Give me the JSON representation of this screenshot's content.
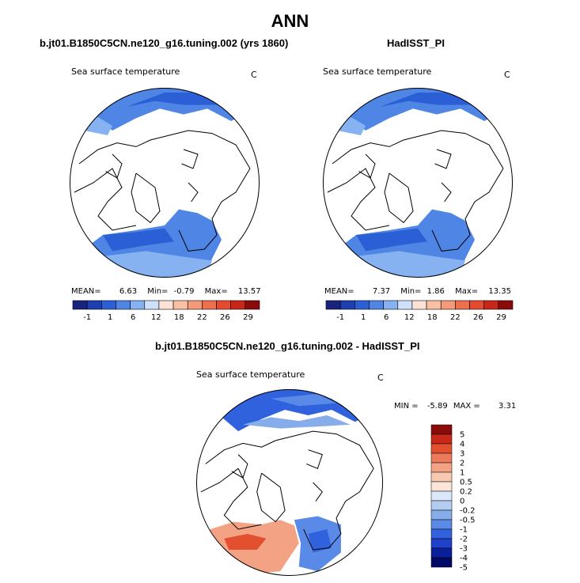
{
  "chart_data": [
    {
      "type": "heatmap",
      "projection": "polar-stereographic",
      "title": "b.jt01.B1850C5CN.ne120_g16.tuning.002 (yrs 1860)",
      "field": "Sea surface temperature",
      "units": "C",
      "stats": {
        "mean_label": "MEAN=",
        "mean": "6.63",
        "min_label": "Min=",
        "min": "-0.79",
        "max_label": "Max=",
        "max": "13.57"
      },
      "colorbar": {
        "colors": [
          "#1a237e",
          "#1e3fb0",
          "#2b5fd6",
          "#4f86e6",
          "#86b2f2",
          "#cfe1fa",
          "#fde3d5",
          "#f9c0a3",
          "#f49a78",
          "#ee6f4f",
          "#e64a2e",
          "#c9261a",
          "#8b0a0a"
        ],
        "labels": [
          "-1",
          "1",
          "6",
          "12",
          "18",
          "22",
          "26",
          "29"
        ]
      }
    },
    {
      "type": "heatmap",
      "projection": "polar-stereographic",
      "title": "HadISST_PI",
      "field": "Sea surface temperature",
      "units": "C",
      "stats": {
        "mean_label": "MEAN=",
        "mean": "7.37",
        "min_label": "Min=",
        "min": "1.86",
        "max_label": "Max=",
        "max": "13.35"
      },
      "colorbar": {
        "colors": [
          "#1a237e",
          "#1e3fb0",
          "#2b5fd6",
          "#4f86e6",
          "#86b2f2",
          "#cfe1fa",
          "#fde3d5",
          "#f9c0a3",
          "#f49a78",
          "#ee6f4f",
          "#e64a2e",
          "#c9261a",
          "#8b0a0a"
        ],
        "labels": [
          "-1",
          "1",
          "6",
          "12",
          "18",
          "22",
          "26",
          "29"
        ]
      }
    },
    {
      "type": "heatmap",
      "projection": "polar-stereographic",
      "title": "b.jt01.B1850C5CN.ne120_g16.tuning.002 - HadISST_PI",
      "field": "Sea surface temperature",
      "units": "C",
      "stats": {
        "min_label": "MIN =",
        "min": "-5.89",
        "max_label": "MAX =",
        "max": "3.31"
      },
      "colorbar": {
        "colors": [
          "#000a66",
          "#0a1f9a",
          "#1f40c8",
          "#2f62dc",
          "#5a8ae8",
          "#86ace9",
          "#b3ccf2",
          "#dbe8fa",
          "#fbe4d8",
          "#f8c8b0",
          "#f3a384",
          "#ee7a5c",
          "#e35030",
          "#c72818",
          "#8b0a0a"
        ],
        "labels": [
          "-5",
          "-4",
          "-3",
          "-2",
          "-1",
          "-0.5",
          "-0.2",
          "0",
          "0.2",
          "0.5",
          "1",
          "2",
          "3",
          "4",
          "5"
        ]
      }
    }
  ],
  "page": {
    "title": "ANN"
  }
}
